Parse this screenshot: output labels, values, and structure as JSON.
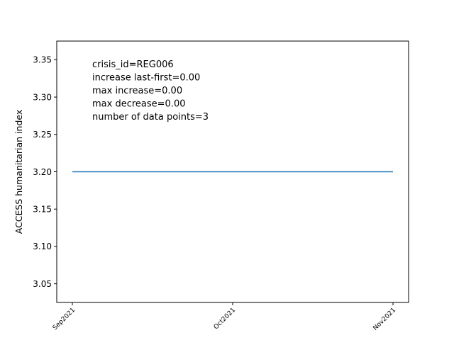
{
  "chart_data": {
    "type": "line",
    "ylabel": "ACCESS humanitarian index",
    "xlabel": "",
    "title": "",
    "categories": [
      "Sep2021",
      "Oct2021",
      "Nov2021"
    ],
    "series": [
      {
        "values": [
          3.2,
          3.2,
          3.2
        ],
        "color": "#1f77b4"
      }
    ],
    "ylim": [
      3.025,
      3.375
    ],
    "yticks": [
      3.05,
      3.1,
      3.15,
      3.2,
      3.25,
      3.3,
      3.35
    ],
    "ytick_labels": [
      "3.05",
      "3.10",
      "3.15",
      "3.20",
      "3.25",
      "3.30",
      "3.35"
    ],
    "annotations": [
      "crisis_id=REG006",
      "increase last-first=0.00",
      "max increase=0.00",
      "max decrease=0.00",
      "number of data points=3"
    ],
    "grid": false,
    "legend": "none"
  }
}
